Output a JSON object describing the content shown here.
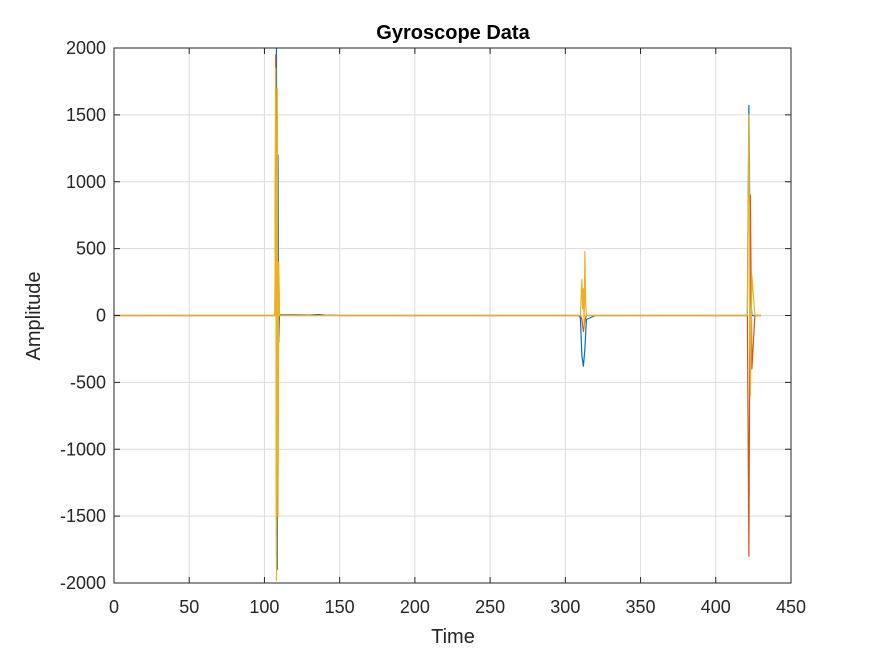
{
  "chart_data": {
    "type": "line",
    "title": "Gyroscope Data",
    "xlabel": "Time",
    "ylabel": "Amplitude",
    "xlim": [
      0,
      450
    ],
    "ylim": [
      -2000,
      2000
    ],
    "xticks": [
      0,
      50,
      100,
      150,
      200,
      250,
      300,
      350,
      400,
      450
    ],
    "yticks": [
      -2000,
      -1500,
      -1000,
      -500,
      0,
      500,
      1000,
      1500,
      2000
    ],
    "grid": true,
    "colors": [
      "#0072BD",
      "#D95319",
      "#EDB120"
    ],
    "series": [
      {
        "x": [
          0,
          50,
          100,
          107,
          107.5,
          108,
          108.5,
          109,
          109.5,
          110,
          120,
          130,
          136,
          140,
          150,
          200,
          250,
          300,
          309,
          310,
          311,
          312,
          313,
          314,
          320,
          350,
          400,
          420,
          421,
          422,
          423,
          424,
          426,
          430
        ],
        "values": [
          0,
          0,
          0,
          0,
          1500,
          2000,
          -1900,
          1200,
          -200,
          5,
          5,
          3,
          8,
          3,
          0,
          0,
          0,
          0,
          0,
          -20,
          -300,
          -380,
          -250,
          -30,
          0,
          0,
          0,
          0,
          0,
          1570,
          200,
          0,
          0,
          0
        ]
      },
      {
        "x": [
          0,
          50,
          100,
          107,
          107.5,
          108,
          108.5,
          109,
          109.5,
          110,
          150,
          200,
          250,
          300,
          310,
          311,
          312,
          313,
          314,
          320,
          350,
          400,
          420,
          421,
          422,
          423,
          424,
          426,
          430
        ],
        "values": [
          0,
          0,
          0,
          0,
          1950,
          -1800,
          1500,
          -1200,
          300,
          0,
          0,
          0,
          0,
          0,
          0,
          -30,
          -120,
          -40,
          0,
          0,
          0,
          0,
          0,
          0,
          -1800,
          900,
          -400,
          0,
          0
        ]
      },
      {
        "x": [
          0,
          50,
          100,
          107,
          107.5,
          108,
          108.5,
          109,
          109.5,
          110,
          150,
          200,
          250,
          300,
          310,
          311,
          311.5,
          312,
          312.5,
          313,
          313.5,
          314,
          320,
          350,
          400,
          420,
          421,
          422,
          423,
          424,
          426,
          430
        ],
        "values": [
          0,
          0,
          0,
          0,
          1850,
          -1980,
          1700,
          -1500,
          400,
          0,
          0,
          0,
          0,
          0,
          0,
          270,
          50,
          200,
          -80,
          480,
          100,
          0,
          0,
          0,
          0,
          0,
          0,
          1500,
          -600,
          300,
          0,
          0
        ]
      }
    ]
  }
}
